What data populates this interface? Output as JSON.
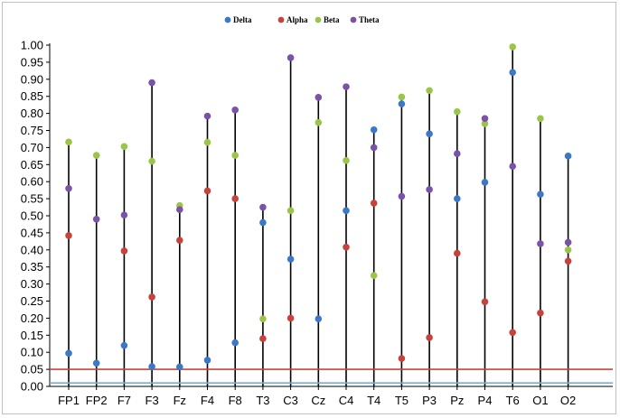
{
  "chart_data": {
    "type": "scatter",
    "title": "",
    "xlabel": "",
    "ylabel": "",
    "ylim": [
      0,
      1.0
    ],
    "yticks": [
      "0.00",
      "0.05",
      "0.10",
      "0.15",
      "0.20",
      "0.25",
      "0.30",
      "0.35",
      "0.40",
      "0.45",
      "0.50",
      "0.55",
      "0.60",
      "0.65",
      "0.70",
      "0.75",
      "0.80",
      "0.85",
      "0.90",
      "0.95",
      "1.00"
    ],
    "categories": [
      "FP1",
      "FP2",
      "F7",
      "F3",
      "Fz",
      "F4",
      "F8",
      "T3",
      "C3",
      "Cz",
      "C4",
      "T4",
      "T5",
      "P3",
      "Pz",
      "P4",
      "T6",
      "O1",
      "O2"
    ],
    "legend_position": "top-center",
    "series": [
      {
        "name": "Delta",
        "color": "#3b78c8",
        "values": [
          0.097,
          0.068,
          0.12,
          0.058,
          0.057,
          0.077,
          0.128,
          0.48,
          0.373,
          0.198,
          0.515,
          0.752,
          0.828,
          0.74,
          0.55,
          0.598,
          0.92,
          0.563,
          0.675
        ]
      },
      {
        "name": "Alpha",
        "color": "#c8423c",
        "values": [
          0.442,
          null,
          0.397,
          0.262,
          0.428,
          0.573,
          0.55,
          0.14,
          0.2,
          null,
          0.408,
          0.537,
          0.082,
          0.143,
          0.39,
          0.248,
          0.158,
          0.215,
          0.367
        ]
      },
      {
        "name": "Beta",
        "color": "#9bc548",
        "values": [
          0.716,
          0.677,
          0.703,
          0.66,
          0.53,
          0.715,
          0.677,
          0.198,
          0.515,
          0.773,
          0.662,
          0.325,
          0.848,
          0.867,
          0.805,
          0.77,
          0.995,
          0.785,
          0.4
        ]
      },
      {
        "name": "Theta",
        "color": "#7a52a8",
        "values": [
          0.58,
          0.49,
          0.502,
          0.89,
          0.518,
          0.792,
          0.81,
          0.525,
          0.963,
          0.847,
          0.878,
          0.7,
          0.557,
          0.577,
          0.682,
          0.785,
          0.645,
          0.418,
          0.422
        ]
      }
    ],
    "reference_lines": [
      {
        "value": 0.05,
        "color": "#c8423c"
      },
      {
        "value": 0.01,
        "color": "#70b0d8"
      }
    ],
    "stem_color": "#000000"
  }
}
